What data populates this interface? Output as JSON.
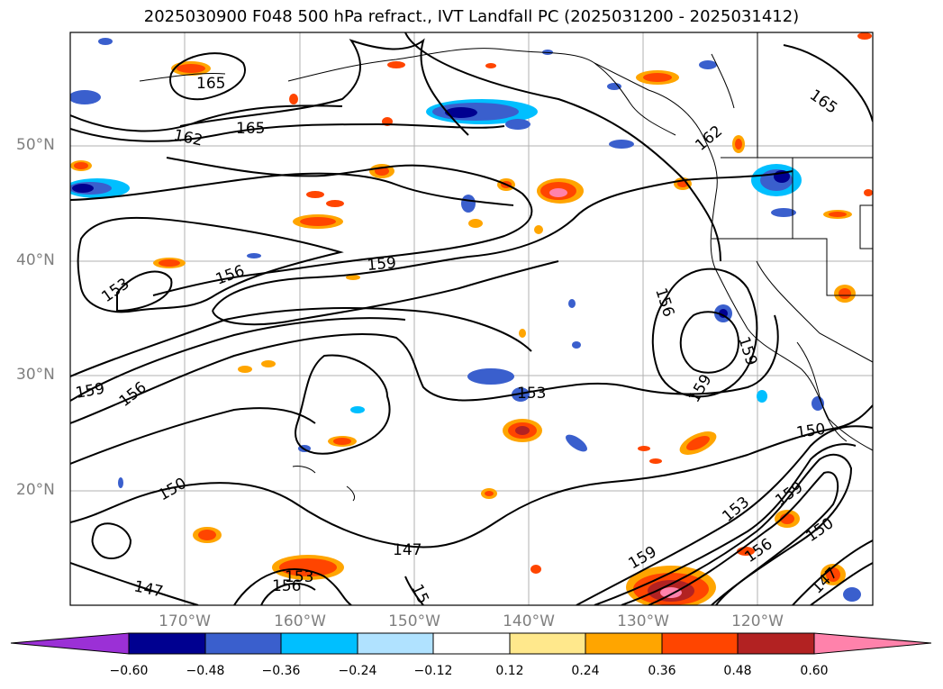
{
  "title": "2025030900 F048 500 hPa refract., IVT Landfall PC (2025031200 - 2025031412)",
  "map": {
    "lat_labels": [
      "50°N",
      "40°N",
      "30°N",
      "20°N"
    ],
    "lon_labels": [
      "170°W",
      "160°W",
      "150°W",
      "140°W",
      "130°W",
      "120°W"
    ],
    "contour_labels": [
      {
        "text": "165"
      },
      {
        "text": "165"
      },
      {
        "text": "162"
      },
      {
        "text": "165"
      },
      {
        "text": "162"
      },
      {
        "text": "159"
      },
      {
        "text": "156"
      },
      {
        "text": "153"
      },
      {
        "text": "156"
      },
      {
        "text": "159"
      },
      {
        "text": "156"
      },
      {
        "text": "159"
      },
      {
        "text": "153"
      },
      {
        "text": "150"
      },
      {
        "text": "150"
      },
      {
        "text": "159"
      },
      {
        "text": "153"
      },
      {
        "text": "159"
      },
      {
        "text": "156"
      },
      {
        "text": "150"
      },
      {
        "text": "147"
      },
      {
        "text": "153"
      },
      {
        "text": "156"
      },
      {
        "text": "147"
      },
      {
        "text": "15"
      },
      {
        "text": "147"
      },
      {
        "text": "159"
      }
    ]
  },
  "colorbar": {
    "colors": [
      "#9b30d6",
      "#000090",
      "#3a5fcd",
      "#00bfff",
      "#b0e2ff",
      "#ffffff",
      "#ffe88c",
      "#ffa500",
      "#ff4500",
      "#b22222",
      "#ff82ab"
    ],
    "ticks": [
      "−0.60",
      "−0.48",
      "−0.36",
      "−0.24",
      "−0.12",
      "0.12",
      "0.24",
      "0.36",
      "0.48",
      "0.60"
    ]
  }
}
